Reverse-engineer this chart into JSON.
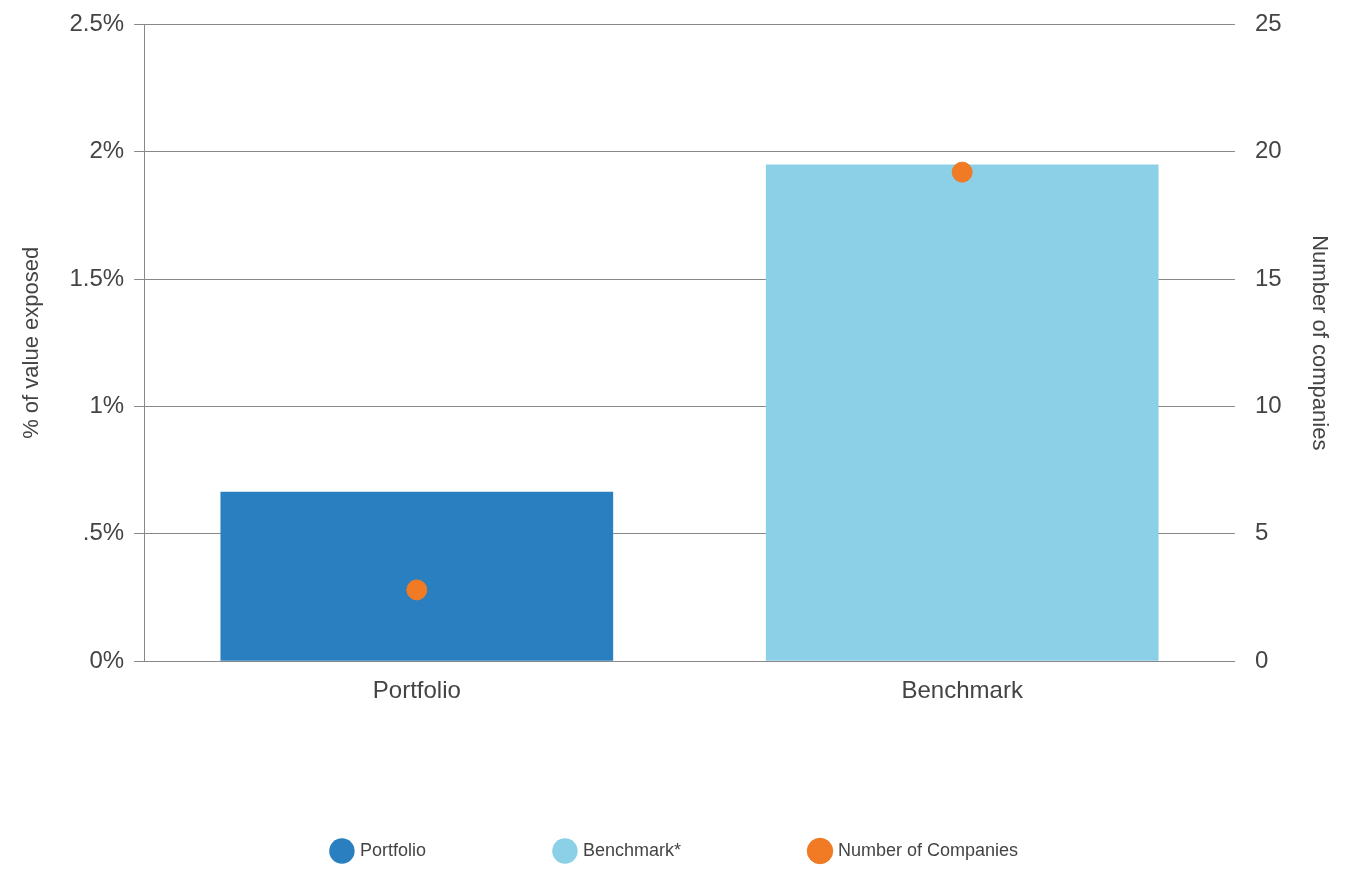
{
  "chart_data": {
    "type": "bar",
    "ylabel": "% of value exposed",
    "y2label": "Number of companies",
    "categories": [
      "Portfolio",
      "Benchmark"
    ],
    "series": [
      {
        "name": "Portfolio",
        "color": "#2a7fc1",
        "values": [
          0.665,
          null
        ]
      },
      {
        "name": "Benchmark*",
        "color": "#8bd0e6",
        "values": [
          null,
          1.95
        ]
      },
      {
        "name": "Number of Companies",
        "type": "scatter",
        "axis": "y2",
        "color": "#f07b24",
        "x": [
          "Portfolio",
          "Benchmark"
        ],
        "values": [
          2.8,
          19.2
        ]
      }
    ],
    "ylim": [
      0,
      2.5
    ],
    "yticks": [
      {
        "value": 0,
        "label": "0%"
      },
      {
        "value": 0.5,
        "label": ".5%"
      },
      {
        "value": 1,
        "label": "1%"
      },
      {
        "value": 1.5,
        "label": "1.5%"
      },
      {
        "value": 2,
        "label": "2%"
      },
      {
        "value": 2.5,
        "label": "2.5%"
      }
    ],
    "y2lim": [
      0,
      25
    ],
    "y2ticks": [
      0,
      5,
      10,
      15,
      20,
      25
    ],
    "grid": "y",
    "legend": "bottom",
    "marker": "circle"
  }
}
